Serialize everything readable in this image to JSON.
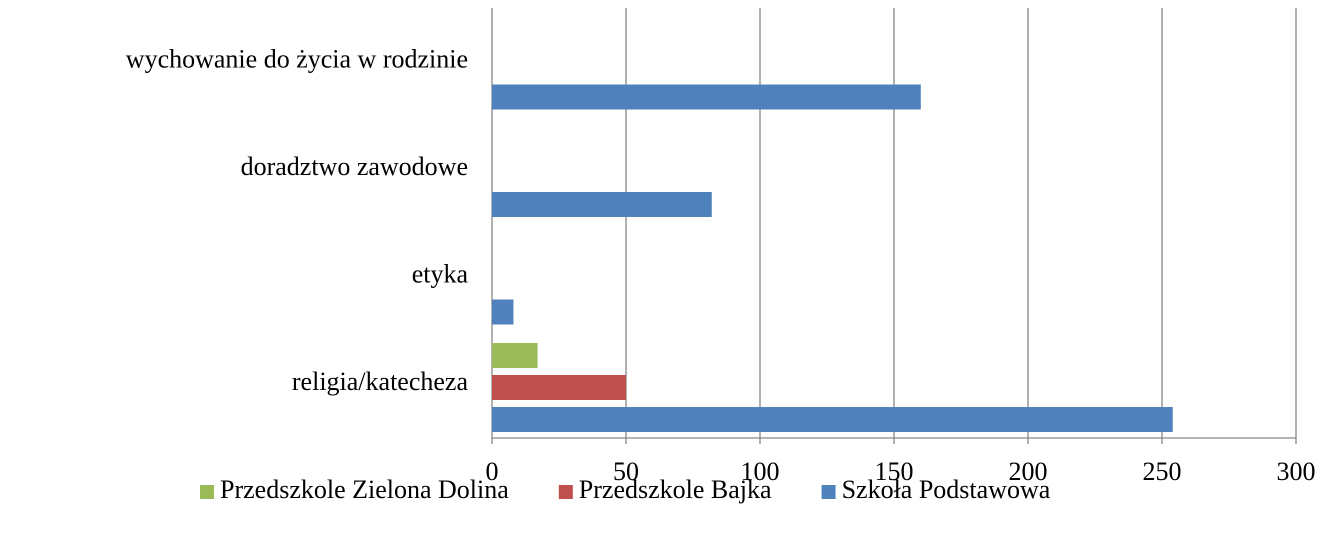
{
  "chart_data": {
    "type": "hbar",
    "categories": [
      "religia/katecheza",
      "etyka",
      "doradztwo zawodowe",
      "wychowanie do życia w rodzinie"
    ],
    "series": [
      {
        "name": "Przedszkole Zielona Dolina",
        "color": "#9bbb59",
        "values": [
          17,
          null,
          null,
          null
        ]
      },
      {
        "name": "Przedszkole Bajka",
        "color": "#c0504d",
        "values": [
          50,
          null,
          null,
          null
        ]
      },
      {
        "name": "Szkoła Podstawowa",
        "color": "#4f81bd",
        "values": [
          254,
          8,
          82,
          160
        ]
      }
    ],
    "xlim": [
      0,
      300
    ],
    "xticks": [
      0,
      50,
      100,
      150,
      200,
      250,
      300
    ],
    "grid": true
  }
}
